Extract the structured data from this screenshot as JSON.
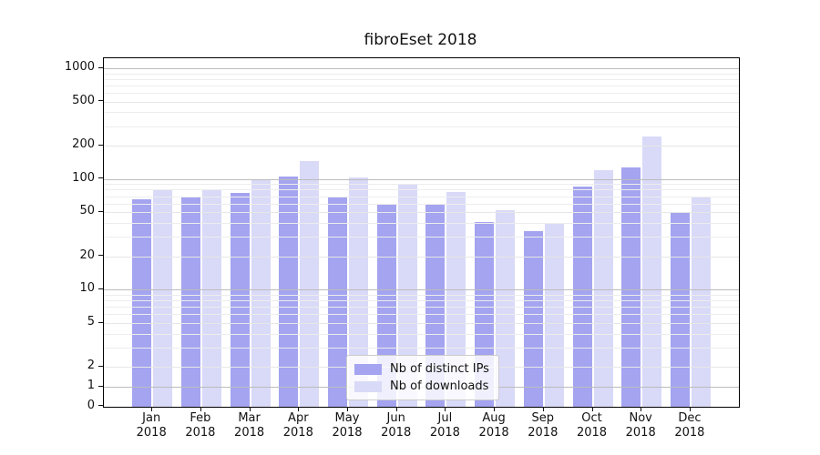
{
  "title": "fibroEset 2018",
  "chart_data": {
    "type": "bar",
    "title": "fibroEset 2018",
    "categories": [
      "Jan",
      "Feb",
      "Mar",
      "Apr",
      "May",
      "Jun",
      "Jul",
      "Aug",
      "Sep",
      "Oct",
      "Nov",
      "Dec"
    ],
    "year_label": "2018",
    "series": [
      {
        "name": "Nb of distinct IPs",
        "color": "#a4a4f0",
        "values": [
          65,
          70,
          75,
          105,
          69,
          60,
          59,
          41,
          34,
          86,
          126,
          50
        ]
      },
      {
        "name": "Nb of downloads",
        "color": "#d9d9f8",
        "values": [
          79,
          80,
          97,
          144,
          104,
          89,
          76,
          52,
          40,
          120,
          243,
          69
        ]
      }
    ],
    "yscale": "symlog",
    "yticks": [
      0,
      1,
      2,
      5,
      10,
      20,
      50,
      100,
      200,
      500,
      1000
    ],
    "ylim": [
      0,
      1230
    ],
    "grid": "both",
    "grid_over_bars": true,
    "legend_position": "lower center"
  },
  "colors": {
    "major_grid": "#bcbcbc",
    "labeled_minor_grid": "#e7e7e7",
    "minor_grid": "#ededed",
    "axis": "#000000"
  }
}
